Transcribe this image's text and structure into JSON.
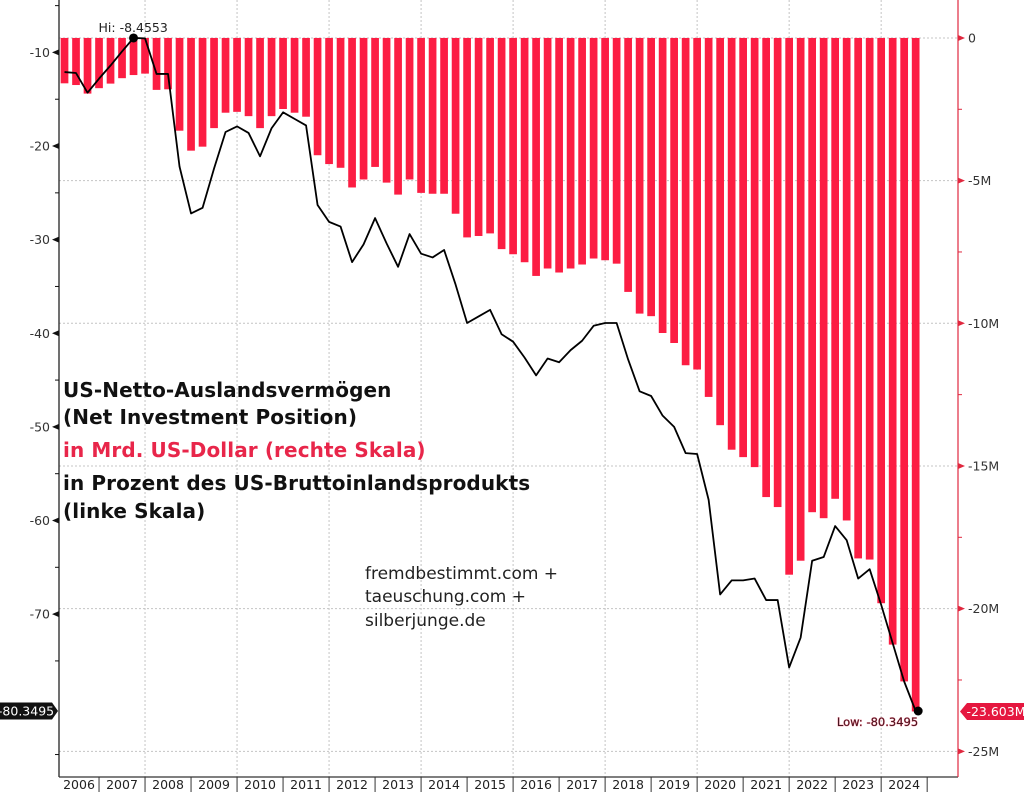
{
  "annotation": {
    "title_line1": "US-Netto-Auslandsvermögen",
    "title_line2": "(Net Investment Position)",
    "right_scale_note": "in Mrd. US-Dollar (rechte Skala)",
    "left_scale_note_line1": "in Prozent des US-Bruttoinlandsprodukts",
    "left_scale_note_line2": "(linke Skala)"
  },
  "credits": [
    "fremdbestimmt.com +",
    "taeuschung.com +",
    "silberjunge.de"
  ],
  "colors": {
    "bars": "#fc1d43",
    "line": "#000000",
    "right_axis": "#e0283f",
    "right_tag": "#e5173f",
    "left_tag": "#111111",
    "grid": "#c4c4c4",
    "red_text": "#e8264a"
  },
  "chart_data": {
    "type": "bar",
    "title": "US-Netto-Auslandsvermögen (Net Investment Position)",
    "xlabel": "",
    "x_range": [
      2006.13,
      2025.67
    ],
    "x_ticks": [
      2006,
      2007,
      2008,
      2009,
      2010,
      2011,
      2012,
      2013,
      2014,
      2015,
      2016,
      2017,
      2018,
      2019,
      2020,
      2021,
      2022,
      2023,
      2024
    ],
    "grid": {
      "on": true,
      "vertical_years": [
        2008,
        2010,
        2012,
        2014,
        2016,
        2018,
        2020,
        2022,
        2024
      ],
      "horizontal_right_values": [
        0,
        -5,
        -10,
        -15,
        -20,
        -25
      ]
    },
    "left_axis": {
      "label": "in Prozent des US-Bruttoinlandsprodukts",
      "range": [
        -87.4,
        -4.4
      ],
      "major_ticks": [
        {
          "value": -10,
          "label": "-10"
        },
        {
          "value": -20,
          "label": "-20"
        },
        {
          "value": -30,
          "label": "-30"
        },
        {
          "value": -40,
          "label": "-40"
        },
        {
          "value": -50,
          "label": "-50"
        },
        {
          "value": -60,
          "label": "-60"
        },
        {
          "value": -70,
          "label": "-70"
        }
      ],
      "minor_ticks": [
        -5,
        -15,
        -25,
        -35,
        -45,
        -55,
        -65,
        -75,
        -85
      ]
    },
    "right_axis": {
      "label": "in Mrd. US-Dollar",
      "range": [
        -25.9,
        1.33
      ],
      "major_ticks": [
        {
          "value": 0,
          "label": "0"
        },
        {
          "value": -5,
          "label": "-5M"
        },
        {
          "value": -10,
          "label": "-10M"
        },
        {
          "value": -15,
          "label": "-15M"
        },
        {
          "value": -20,
          "label": "-20M"
        },
        {
          "value": -25,
          "label": "-25M"
        }
      ],
      "minor_ticks": [
        -2.5,
        -7.5,
        -12.5,
        -17.5,
        -22.5
      ]
    },
    "categories": [
      "2006 Q1",
      "2006 Q2",
      "2006 Q3",
      "2006 Q4",
      "2007 Q1",
      "2007 Q2",
      "2007 Q3",
      "2007 Q4",
      "2008 Q1",
      "2008 Q2",
      "2008 Q3",
      "2008 Q4",
      "2009 Q1",
      "2009 Q2",
      "2009 Q3",
      "2009 Q4",
      "2010 Q1",
      "2010 Q2",
      "2010 Q3",
      "2010 Q4",
      "2011 Q1",
      "2011 Q2",
      "2011 Q3",
      "2011 Q4",
      "2012 Q1",
      "2012 Q2",
      "2012 Q3",
      "2012 Q4",
      "2013 Q1",
      "2013 Q2",
      "2013 Q3",
      "2013 Q4",
      "2014 Q1",
      "2014 Q2",
      "2014 Q3",
      "2014 Q4",
      "2015 Q1",
      "2015 Q2",
      "2015 Q3",
      "2015 Q4",
      "2016 Q1",
      "2016 Q2",
      "2016 Q3",
      "2016 Q4",
      "2017 Q1",
      "2017 Q2",
      "2017 Q3",
      "2017 Q4",
      "2018 Q1",
      "2018 Q2",
      "2018 Q3",
      "2018 Q4",
      "2019 Q1",
      "2019 Q2",
      "2019 Q3",
      "2019 Q4",
      "2020 Q1",
      "2020 Q2",
      "2020 Q3",
      "2020 Q4",
      "2021 Q1",
      "2021 Q2",
      "2021 Q3",
      "2021 Q4",
      "2022 Q1",
      "2022 Q2",
      "2022 Q3",
      "2022 Q4",
      "2023 Q1",
      "2023 Q2",
      "2023 Q3",
      "2023 Q4",
      "2024 Q1",
      "2024 Q2",
      "2024 Q3"
    ],
    "series": [
      {
        "name": "Net Investment Position, USD (right scale)",
        "type": "bar",
        "axis": "right",
        "values": [
          -1.59,
          -1.65,
          -1.95,
          -1.76,
          -1.6,
          -1.41,
          -1.3,
          -1.25,
          -1.82,
          -1.8,
          -3.25,
          -3.95,
          -3.81,
          -3.16,
          -2.62,
          -2.59,
          -2.74,
          -3.16,
          -2.74,
          -2.49,
          -2.62,
          -2.76,
          -4.11,
          -4.42,
          -4.55,
          -5.24,
          -4.96,
          -4.52,
          -5.07,
          -5.49,
          -4.96,
          -5.43,
          -5.46,
          -5.46,
          -6.16,
          -6.99,
          -6.94,
          -6.85,
          -7.4,
          -7.58,
          -7.86,
          -8.34,
          -8.08,
          -8.22,
          -8.08,
          -7.94,
          -7.73,
          -7.79,
          -7.91,
          -8.9,
          -9.66,
          -9.75,
          -10.34,
          -10.69,
          -11.47,
          -11.62,
          -12.58,
          -13.57,
          -14.43,
          -14.69,
          -15.04,
          -16.09,
          -16.44,
          -18.81,
          -18.32,
          -16.62,
          -16.83,
          -16.15,
          -16.91,
          -18.24,
          -18.28,
          -19.81,
          -21.26,
          -22.55,
          -23.603
        ]
      },
      {
        "name": "Net Investment Position, % of GDP (left scale)",
        "type": "line",
        "axis": "left",
        "values": [
          -12.1,
          -12.2,
          -14.3,
          -12.8,
          -11.4,
          -9.9,
          -8.4553,
          -8.5,
          -12.3,
          -12.3,
          -22.2,
          -27.2,
          -26.6,
          -22.4,
          -18.5,
          -17.9,
          -18.6,
          -21.1,
          -18.1,
          -16.4,
          -17.1,
          -17.8,
          -26.3,
          -28.1,
          -28.6,
          -32.4,
          -30.5,
          -27.7,
          -30.4,
          -32.9,
          -29.4,
          -31.5,
          -31.9,
          -31.1,
          -34.8,
          -38.9,
          -38.2,
          -37.5,
          -40.1,
          -40.9,
          -42.6,
          -44.5,
          -42.7,
          -43.1,
          -41.8,
          -40.8,
          -39.2,
          -38.9,
          -38.9,
          -42.8,
          -46.2,
          -46.7,
          -48.8,
          -50.0,
          -52.8,
          -52.9,
          -57.8,
          -67.9,
          -66.4,
          -66.4,
          -66.2,
          -68.5,
          -68.5,
          -75.7,
          -72.5,
          -64.3,
          -63.9,
          -60.6,
          -62.1,
          -66.2,
          -65.2,
          -69.0,
          -73.1,
          -77.2,
          -80.3495
        ]
      }
    ],
    "highlights": {
      "hi": {
        "label": "Hi: -8.4553",
        "index": 6,
        "value": -8.4553
      },
      "low": {
        "label": "Low: -80.3495",
        "index": 74,
        "value": -80.3495
      }
    },
    "last_value_tags": {
      "left": {
        "label": "-80.3495",
        "value": -80.3495
      },
      "right": {
        "label": "-23.603M",
        "value": -23.603
      }
    },
    "legend": "none"
  }
}
